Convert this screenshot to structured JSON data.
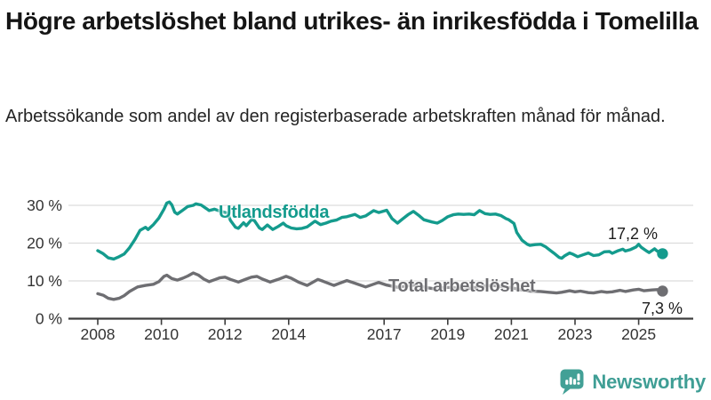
{
  "header": {
    "title": "Högre arbetslöshet bland utrikes- än inrikesfödda i Tomelilla",
    "subtitle": "Arbetssökande som andel av den registerbaserade arbetskraften månad för månad."
  },
  "chart_data": {
    "type": "line",
    "title": "Högre arbetslöshet bland utrikes- än inrikesfödda i Tomelilla",
    "subtitle": "Arbetssökande som andel av den registerbaserade arbetskraften månad för månad.",
    "grid": "horizontal-only",
    "x_axis": {
      "range": [
        2007.1,
        2026.2
      ],
      "ticks": [
        {
          "value": 2008,
          "label": "2008"
        },
        {
          "value": 2010,
          "label": "2010"
        },
        {
          "value": 2012,
          "label": "2012"
        },
        {
          "value": 2014,
          "label": "2014"
        },
        {
          "value": 2017,
          "label": "2017"
        },
        {
          "value": 2019,
          "label": "2019"
        },
        {
          "value": 2021,
          "label": "2021"
        },
        {
          "value": 2023,
          "label": "2023"
        },
        {
          "value": 2025,
          "label": "2025"
        }
      ]
    },
    "y_axis": {
      "range": [
        0,
        33
      ],
      "unit": "%",
      "ticks": [
        {
          "value": 0,
          "label": "0 %"
        },
        {
          "value": 10,
          "label": "10 %"
        },
        {
          "value": 20,
          "label": "20 %"
        },
        {
          "value": 30,
          "label": "30 %"
        }
      ]
    },
    "series": [
      {
        "name": "Utlandsfödda",
        "color": "#149b8d",
        "end_value": 17.2,
        "end_label": "17,2 %",
        "points": [
          [
            2008.0,
            18.0
          ],
          [
            2008.17,
            17.2
          ],
          [
            2008.33,
            16.1
          ],
          [
            2008.5,
            15.8
          ],
          [
            2008.67,
            16.4
          ],
          [
            2008.83,
            17.1
          ],
          [
            2009.0,
            18.8
          ],
          [
            2009.17,
            21.0
          ],
          [
            2009.33,
            23.4
          ],
          [
            2009.5,
            24.2
          ],
          [
            2009.58,
            23.6
          ],
          [
            2009.75,
            24.9
          ],
          [
            2009.92,
            26.6
          ],
          [
            2010.08,
            29.0
          ],
          [
            2010.17,
            30.6
          ],
          [
            2010.25,
            30.9
          ],
          [
            2010.33,
            30.1
          ],
          [
            2010.42,
            28.2
          ],
          [
            2010.5,
            27.7
          ],
          [
            2010.67,
            28.7
          ],
          [
            2010.83,
            29.7
          ],
          [
            2011.0,
            30.0
          ],
          [
            2011.08,
            30.4
          ],
          [
            2011.25,
            30.1
          ],
          [
            2011.42,
            29.1
          ],
          [
            2011.5,
            28.6
          ],
          [
            2011.67,
            29.0
          ],
          [
            2011.83,
            28.5
          ],
          [
            2011.92,
            28.3
          ],
          [
            2012.08,
            27.9
          ],
          [
            2012.17,
            26.0
          ],
          [
            2012.33,
            24.2
          ],
          [
            2012.42,
            23.9
          ],
          [
            2012.58,
            25.4
          ],
          [
            2012.67,
            24.6
          ],
          [
            2012.83,
            26.2
          ],
          [
            2012.92,
            26.0
          ],
          [
            2013.08,
            24.0
          ],
          [
            2013.17,
            23.6
          ],
          [
            2013.33,
            24.8
          ],
          [
            2013.5,
            23.6
          ],
          [
            2013.67,
            24.4
          ],
          [
            2013.83,
            25.3
          ],
          [
            2013.92,
            24.6
          ],
          [
            2014.08,
            24.0
          ],
          [
            2014.25,
            23.8
          ],
          [
            2014.42,
            23.9
          ],
          [
            2014.58,
            24.3
          ],
          [
            2014.83,
            25.8
          ],
          [
            2015.0,
            24.9
          ],
          [
            2015.17,
            25.3
          ],
          [
            2015.33,
            25.8
          ],
          [
            2015.5,
            26.1
          ],
          [
            2015.67,
            26.8
          ],
          [
            2015.83,
            27.0
          ],
          [
            2016.08,
            27.6
          ],
          [
            2016.25,
            26.8
          ],
          [
            2016.42,
            27.2
          ],
          [
            2016.67,
            28.6
          ],
          [
            2016.83,
            28.1
          ],
          [
            2017.08,
            28.7
          ],
          [
            2017.25,
            26.5
          ],
          [
            2017.42,
            25.3
          ],
          [
            2017.58,
            26.4
          ],
          [
            2017.75,
            27.5
          ],
          [
            2017.92,
            28.4
          ],
          [
            2018.08,
            27.4
          ],
          [
            2018.25,
            26.2
          ],
          [
            2018.5,
            25.6
          ],
          [
            2018.67,
            25.3
          ],
          [
            2018.83,
            26.0
          ],
          [
            2019.0,
            27.0
          ],
          [
            2019.17,
            27.5
          ],
          [
            2019.33,
            27.7
          ],
          [
            2019.5,
            27.6
          ],
          [
            2019.67,
            27.7
          ],
          [
            2019.83,
            27.5
          ],
          [
            2020.0,
            28.6
          ],
          [
            2020.17,
            27.8
          ],
          [
            2020.33,
            27.6
          ],
          [
            2020.5,
            27.7
          ],
          [
            2020.67,
            27.3
          ],
          [
            2020.83,
            26.5
          ],
          [
            2020.92,
            26.2
          ],
          [
            2021.08,
            25.2
          ],
          [
            2021.17,
            22.8
          ],
          [
            2021.33,
            20.8
          ],
          [
            2021.5,
            19.7
          ],
          [
            2021.58,
            19.4
          ],
          [
            2021.75,
            19.6
          ],
          [
            2021.92,
            19.7
          ],
          [
            2022.08,
            19.0
          ],
          [
            2022.17,
            18.4
          ],
          [
            2022.33,
            17.4
          ],
          [
            2022.5,
            16.2
          ],
          [
            2022.58,
            16.0
          ],
          [
            2022.67,
            16.6
          ],
          [
            2022.83,
            17.4
          ],
          [
            2022.92,
            17.1
          ],
          [
            2023.08,
            16.4
          ],
          [
            2023.25,
            16.9
          ],
          [
            2023.42,
            17.4
          ],
          [
            2023.58,
            16.7
          ],
          [
            2023.75,
            16.9
          ],
          [
            2023.92,
            17.7
          ],
          [
            2024.08,
            17.8
          ],
          [
            2024.17,
            17.3
          ],
          [
            2024.33,
            17.9
          ],
          [
            2024.5,
            18.4
          ],
          [
            2024.58,
            17.9
          ],
          [
            2024.75,
            18.3
          ],
          [
            2024.92,
            19.0
          ],
          [
            2025.0,
            19.7
          ],
          [
            2025.08,
            18.9
          ],
          [
            2025.25,
            17.9
          ],
          [
            2025.33,
            17.5
          ],
          [
            2025.5,
            18.5
          ],
          [
            2025.58,
            17.9
          ],
          [
            2025.75,
            17.2
          ]
        ]
      },
      {
        "name": "Total arbetslöshet",
        "color": "#6e6e72",
        "end_value": 7.3,
        "end_label": "7,3 %",
        "points": [
          [
            2008.0,
            6.6
          ],
          [
            2008.17,
            6.2
          ],
          [
            2008.33,
            5.4
          ],
          [
            2008.5,
            5.1
          ],
          [
            2008.67,
            5.4
          ],
          [
            2008.83,
            6.1
          ],
          [
            2009.0,
            7.2
          ],
          [
            2009.25,
            8.4
          ],
          [
            2009.5,
            8.8
          ],
          [
            2009.75,
            9.1
          ],
          [
            2009.92,
            9.8
          ],
          [
            2010.08,
            11.2
          ],
          [
            2010.17,
            11.5
          ],
          [
            2010.33,
            10.6
          ],
          [
            2010.5,
            10.2
          ],
          [
            2010.67,
            10.7
          ],
          [
            2010.83,
            11.3
          ],
          [
            2011.0,
            12.1
          ],
          [
            2011.17,
            11.5
          ],
          [
            2011.33,
            10.5
          ],
          [
            2011.5,
            9.8
          ],
          [
            2011.67,
            10.3
          ],
          [
            2011.83,
            10.8
          ],
          [
            2012.0,
            11.0
          ],
          [
            2012.17,
            10.4
          ],
          [
            2012.42,
            9.7
          ],
          [
            2012.67,
            10.5
          ],
          [
            2012.83,
            11.0
          ],
          [
            2013.0,
            11.2
          ],
          [
            2013.17,
            10.5
          ],
          [
            2013.42,
            9.7
          ],
          [
            2013.67,
            10.4
          ],
          [
            2013.92,
            11.2
          ],
          [
            2014.08,
            10.7
          ],
          [
            2014.33,
            9.6
          ],
          [
            2014.58,
            8.8
          ],
          [
            2014.92,
            10.4
          ],
          [
            2015.08,
            9.9
          ],
          [
            2015.42,
            8.8
          ],
          [
            2015.83,
            10.1
          ],
          [
            2016.08,
            9.4
          ],
          [
            2016.42,
            8.4
          ],
          [
            2016.83,
            9.6
          ],
          [
            2017.08,
            8.9
          ],
          [
            2017.42,
            8.3
          ],
          [
            2017.75,
            8.7
          ],
          [
            2018.0,
            8.9
          ],
          [
            2018.33,
            8.2
          ],
          [
            2018.58,
            7.9
          ],
          [
            2018.92,
            8.3
          ],
          [
            2019.17,
            8.2
          ],
          [
            2019.5,
            7.8
          ],
          [
            2019.83,
            8.2
          ],
          [
            2020.08,
            8.6
          ],
          [
            2020.42,
            8.8
          ],
          [
            2020.75,
            8.4
          ],
          [
            2021.0,
            8.2
          ],
          [
            2021.33,
            7.6
          ],
          [
            2021.58,
            7.3
          ],
          [
            2021.92,
            7.2
          ],
          [
            2022.17,
            7.0
          ],
          [
            2022.42,
            6.8
          ],
          [
            2022.58,
            7.0
          ],
          [
            2022.83,
            7.4
          ],
          [
            2023.0,
            7.1
          ],
          [
            2023.17,
            7.3
          ],
          [
            2023.42,
            6.9
          ],
          [
            2023.58,
            6.8
          ],
          [
            2023.83,
            7.2
          ],
          [
            2024.0,
            7.0
          ],
          [
            2024.17,
            7.1
          ],
          [
            2024.42,
            7.5
          ],
          [
            2024.58,
            7.2
          ],
          [
            2024.83,
            7.6
          ],
          [
            2025.0,
            7.8
          ],
          [
            2025.17,
            7.4
          ],
          [
            2025.42,
            7.6
          ],
          [
            2025.58,
            7.7
          ],
          [
            2025.75,
            7.3
          ]
        ]
      }
    ],
    "annotations": [
      {
        "text": "17,2 %",
        "series": "Utlandsfödda"
      },
      {
        "text": "7,3 %",
        "series": "Total arbetslöshet"
      }
    ],
    "legend_position": "inline-labels"
  },
  "style": {
    "accent_teal": "#149b8d",
    "line_gray": "#6e6e72",
    "gridline": "#dcdcdc",
    "axis": "#3d3d3d",
    "axis_text": "#333333",
    "logo_teal": "#3f9e95"
  },
  "logo": {
    "text": "Newsworthy",
    "icon": "newsworthy-bubble-chart-icon"
  }
}
